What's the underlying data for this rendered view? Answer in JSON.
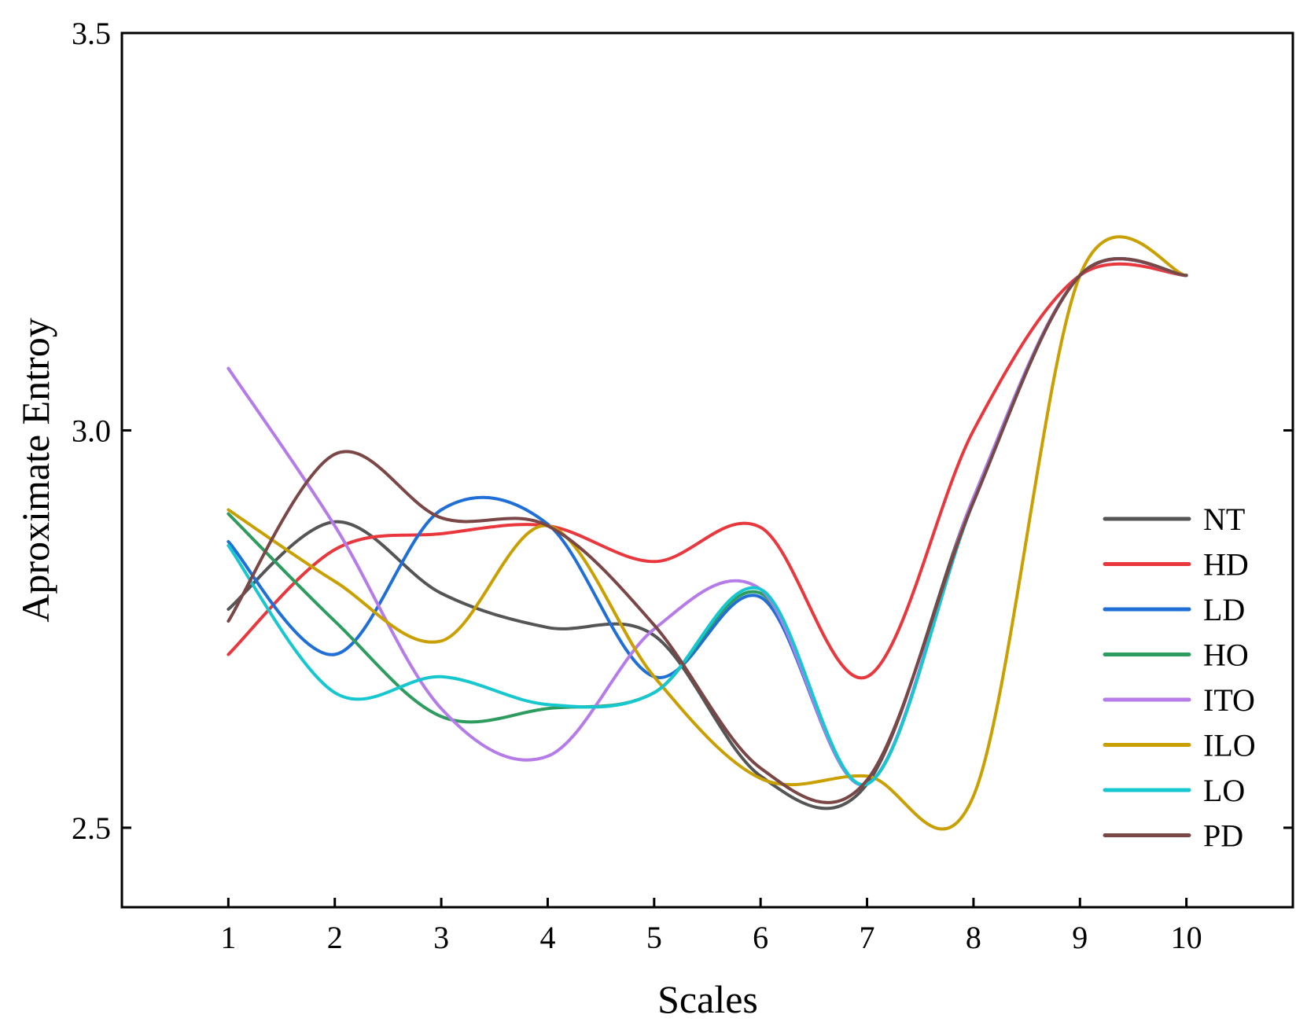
{
  "chart_data": {
    "type": "line",
    "title": "",
    "xlabel": "Scales",
    "ylabel": "Aproximate Entroy",
    "x": [
      1,
      2,
      3,
      4,
      5,
      6,
      7,
      8,
      9,
      10
    ],
    "xlim": [
      0,
      11
    ],
    "ylim": [
      2.4,
      3.5
    ],
    "x_ticks": [
      "1",
      "2",
      "3",
      "4",
      "5",
      "6",
      "7",
      "8",
      "9",
      "10"
    ],
    "y_ticks": [
      {
        "value": 2.5,
        "label": "2.5"
      },
      {
        "value": 3.0,
        "label": "3.0"
      },
      {
        "value": 3.5,
        "label": "3.5"
      }
    ],
    "legend_position": "right",
    "grid": false,
    "series": [
      {
        "name": "NT",
        "color": "#555555",
        "values": [
          2.775,
          2.885,
          2.795,
          2.752,
          2.742,
          2.565,
          2.555,
          2.915,
          3.195,
          3.195
        ]
      },
      {
        "name": "HD",
        "color": "#e8383d",
        "values": [
          2.718,
          2.85,
          2.87,
          2.88,
          2.835,
          2.878,
          2.69,
          3.0,
          3.195,
          3.195
        ]
      },
      {
        "name": "LD",
        "color": "#1f6fd6",
        "values": [
          2.86,
          2.718,
          2.9,
          2.882,
          2.69,
          2.79,
          2.555,
          2.91,
          3.195,
          3.195
        ]
      },
      {
        "name": "HO",
        "color": "#2e9c5e",
        "values": [
          2.895,
          2.76,
          2.64,
          2.65,
          2.67,
          2.795,
          2.555,
          2.91,
          3.195,
          3.195
        ]
      },
      {
        "name": "ITO",
        "color": "#b57be8",
        "values": [
          3.078,
          2.88,
          2.65,
          2.59,
          2.75,
          2.8,
          2.555,
          2.915,
          3.195,
          3.195
        ]
      },
      {
        "name": "ILO",
        "color": "#c9a000",
        "values": [
          2.9,
          2.81,
          2.735,
          2.88,
          2.69,
          2.562,
          2.565,
          2.54,
          3.195,
          3.195
        ]
      },
      {
        "name": "LO",
        "color": "#17c7cf",
        "values": [
          2.855,
          2.67,
          2.69,
          2.655,
          2.67,
          2.8,
          2.555,
          2.91,
          3.195,
          3.195
        ]
      },
      {
        "name": "PD",
        "color": "#7a4646",
        "values": [
          2.76,
          2.97,
          2.89,
          2.88,
          2.755,
          2.575,
          2.56,
          2.91,
          3.195,
          3.195
        ]
      }
    ]
  }
}
